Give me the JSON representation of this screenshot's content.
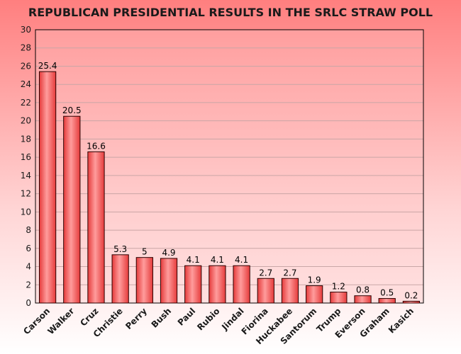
{
  "chart_data": {
    "type": "bar",
    "title": "REPUBLICAN PRESIDENTIAL RESULTS IN THE SRLC STRAW POLL",
    "xlabel": "",
    "ylabel": "",
    "ylim": [
      0,
      30
    ],
    "yticks": [
      0,
      2,
      4,
      6,
      8,
      10,
      12,
      14,
      16,
      18,
      20,
      22,
      24,
      26,
      28,
      30
    ],
    "grid": true,
    "legend": "none",
    "categories": [
      "Carson",
      "Walker",
      "Cruz",
      "Christie",
      "Perry",
      "Bush",
      "Paul",
      "Rubio",
      "Jindal",
      "Fiorina",
      "Huckabee",
      "Santorum",
      "Trump",
      "Everson",
      "Graham",
      "Kasich"
    ],
    "values": [
      25.4,
      20.5,
      16.6,
      5.3,
      5,
      4.9,
      4.1,
      4.1,
      4.1,
      2.7,
      2.7,
      1.9,
      1.2,
      0.8,
      0.5,
      0.2
    ],
    "colors": {
      "bar": "#e53b3b",
      "bar_light": "#ff9c9c",
      "bar_stroke": "#2b0000",
      "grid": "#c9a6a6",
      "plot_bg": "#ffc2c2"
    }
  }
}
